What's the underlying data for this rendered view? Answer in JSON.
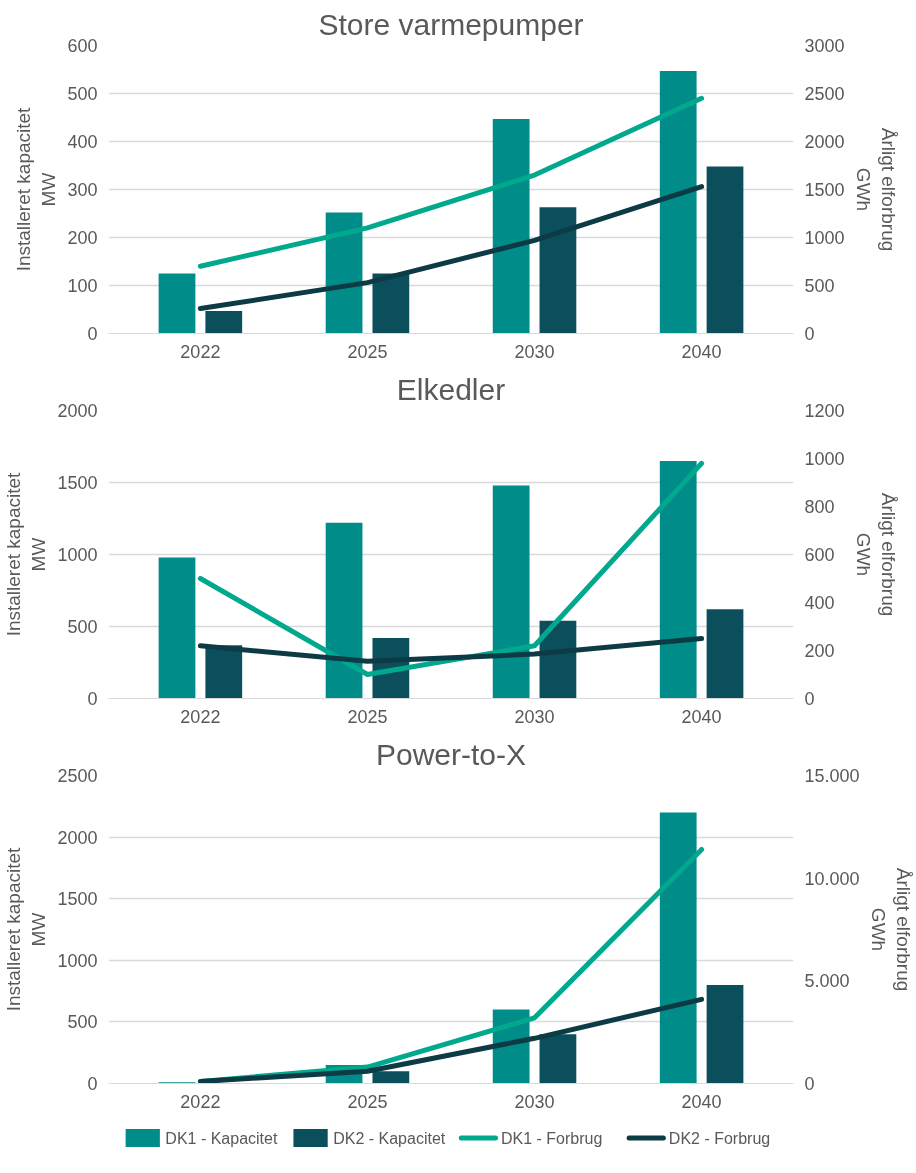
{
  "chart_data": [
    {
      "type": "bar",
      "title": "Store varmepumper",
      "ylabel": "Installeret kapacitet\nMW",
      "y2label": "Årligt elforbrug\nGWh",
      "categories": [
        "2022",
        "2025",
        "2030",
        "2040"
      ],
      "ylim": [
        0,
        600
      ],
      "yticks": [
        0,
        100,
        200,
        300,
        400,
        500,
        600
      ],
      "y2lim": [
        0,
        3000
      ],
      "y2ticks": [
        0,
        500,
        1000,
        1500,
        2000,
        2500,
        3000
      ],
      "grid": "y",
      "legend": false,
      "series": [
        {
          "color": "#008c89",
          "values": [
            125,
            252,
            447,
            547
          ]
        },
        {
          "color": "#0b4f5c",
          "values": [
            47,
            125,
            263,
            348
          ]
        },
        {
          "type": "line",
          "axis": "y2",
          "color": "#00a88d",
          "values": [
            700,
            1100,
            1650,
            2450
          ]
        },
        {
          "type": "line",
          "axis": "y2",
          "color": "#0d3b45",
          "values": [
            260,
            530,
            970,
            1530
          ]
        }
      ]
    },
    {
      "type": "bar",
      "title": "Elkedler",
      "ylabel": "Installeret kapacitet\nMW",
      "y2label": "Årligt elforbrug\nGWh",
      "categories": [
        "2022",
        "2025",
        "2030",
        "2040"
      ],
      "ylim": [
        0,
        2000
      ],
      "yticks": [
        0,
        500,
        1000,
        1500,
        2000
      ],
      "y2lim": [
        0,
        1200
      ],
      "y2ticks": [
        0,
        200,
        400,
        600,
        800,
        1000,
        1200
      ],
      "grid": "y",
      "legend": false,
      "series": [
        {
          "color": "#008c89",
          "values": [
            980,
            1220,
            1480,
            1650
          ]
        },
        {
          "color": "#0b4f5c",
          "values": [
            370,
            420,
            540,
            620
          ]
        },
        {
          "type": "line",
          "axis": "y2",
          "color": "#00a88d",
          "values": [
            500,
            100,
            220,
            980
          ]
        },
        {
          "type": "line",
          "axis": "y2",
          "color": "#0d3b45",
          "values": [
            220,
            155,
            185,
            250
          ]
        }
      ]
    },
    {
      "type": "bar",
      "title": "Power-to-X",
      "ylabel": "Installeret kapacitet\nMW",
      "y2label": "Årligt elforbrug\nGWh",
      "categories": [
        "2022",
        "2025",
        "2030",
        "2040"
      ],
      "ylim": [
        0,
        2500
      ],
      "yticks": [
        0,
        500,
        1000,
        1500,
        2000,
        2500
      ],
      "y2lim": [
        0,
        15000
      ],
      "y2ticks": [
        0,
        {
          "value": 5000,
          "label": "5.000"
        },
        {
          "value": 10000,
          "label": "10.000"
        },
        {
          "value": 15000,
          "label": "15.000"
        }
      ],
      "grid": "y",
      "legend": "bottom",
      "series": [
        {
          "name": "DK1 - Kapacitet",
          "color": "#008c89",
          "values": [
            10,
            150,
            600,
            2200
          ]
        },
        {
          "name": "DK2 - Kapacitet",
          "color": "#0b4f5c",
          "values": [
            0,
            100,
            400,
            800
          ]
        },
        {
          "type": "line",
          "axis": "y2",
          "name": "DK1 - Forbrug",
          "color": "#00a88d",
          "values": [
            100,
            800,
            3200,
            11400
          ]
        },
        {
          "type": "line",
          "axis": "y2",
          "name": "DK2 - Forbrug",
          "color": "#0d3b45",
          "values": [
            100,
            600,
            2200,
            4100
          ]
        }
      ]
    }
  ]
}
